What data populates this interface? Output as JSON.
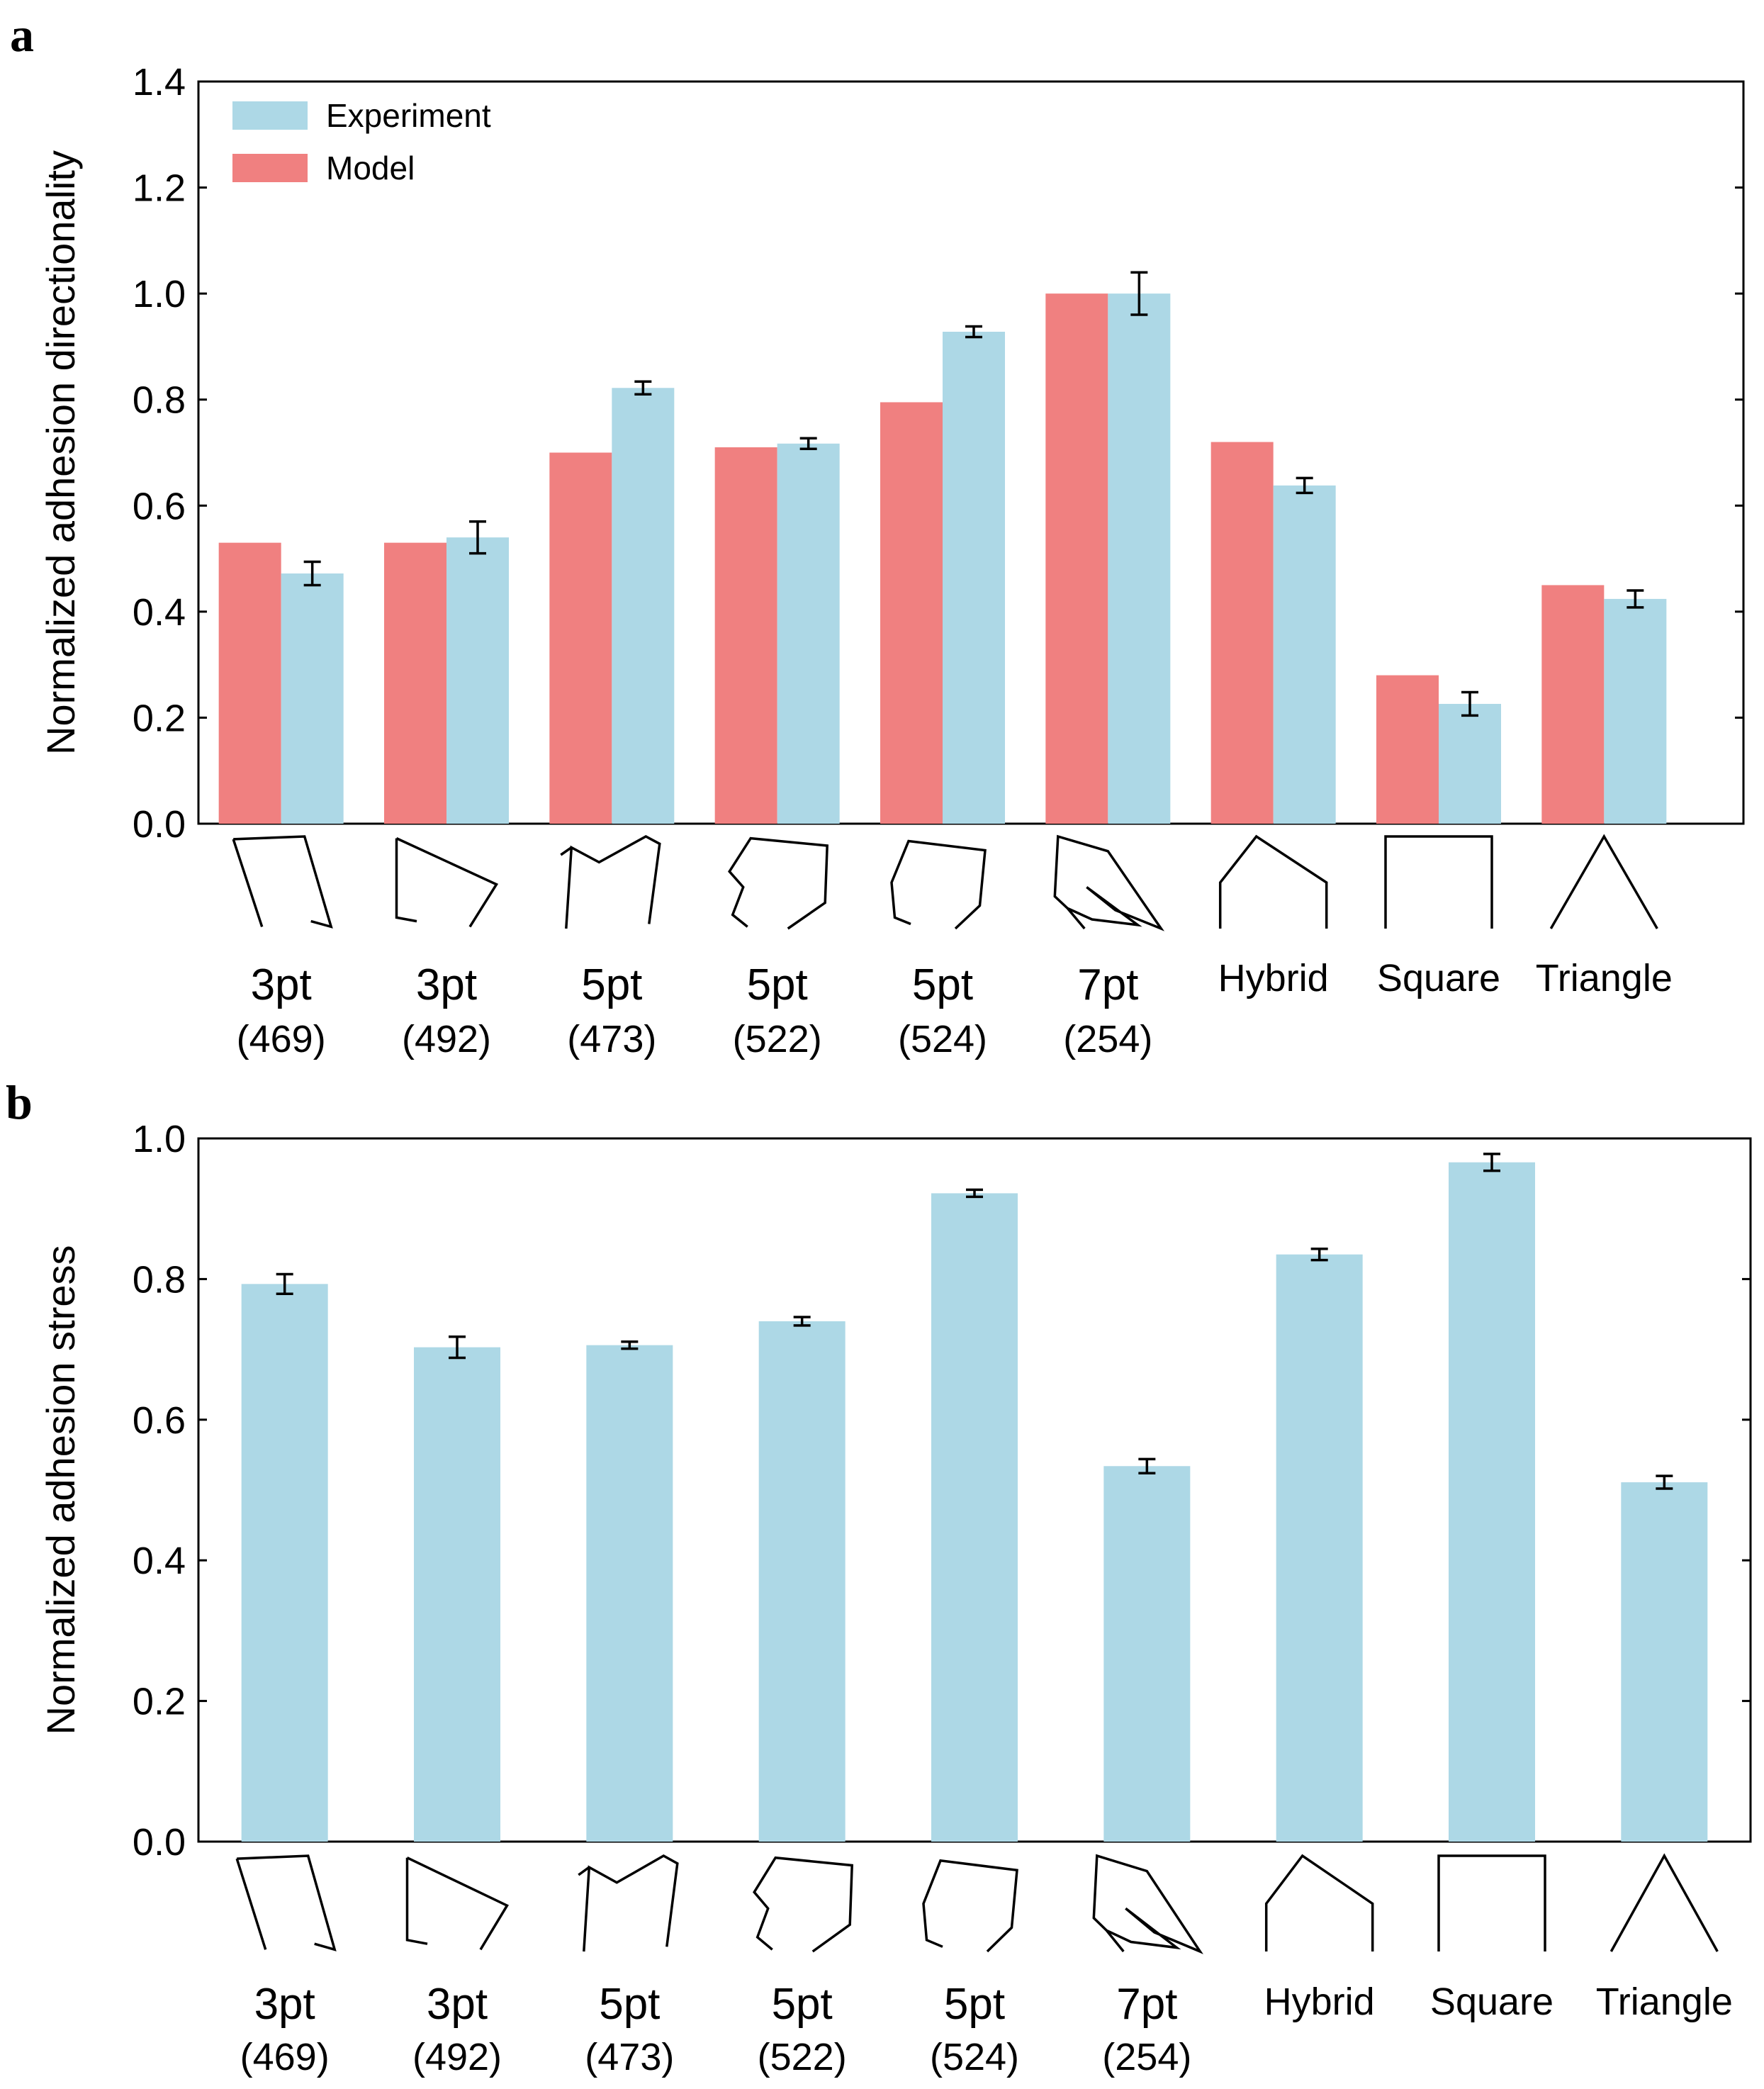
{
  "panels": {
    "a": {
      "letter": "a"
    },
    "b": {
      "letter": "b"
    }
  },
  "colors": {
    "experiment": "#add8e6",
    "model": "#f08080",
    "axis": "#000000"
  },
  "chart_data": [
    {
      "type": "bar",
      "panel": "a",
      "ylabel": "Normalized adhesion directionality",
      "xlabel": "",
      "ylim": [
        0,
        1.4
      ],
      "yticks": [
        "0.0",
        "0.2",
        "0.4",
        "0.6",
        "0.8",
        "1.0",
        "1.2",
        "1.4"
      ],
      "legend": {
        "position": "top-left",
        "entries": [
          "Experiment",
          "Model"
        ]
      },
      "categories": [
        {
          "label": "3pt",
          "sub": "(469)",
          "shape": "3pt-469"
        },
        {
          "label": "3pt",
          "sub": "(492)",
          "shape": "3pt-492"
        },
        {
          "label": "5pt",
          "sub": "(473)",
          "shape": "5pt-473"
        },
        {
          "label": "5pt",
          "sub": "(522)",
          "shape": "5pt-522"
        },
        {
          "label": "5pt",
          "sub": "(524)",
          "shape": "5pt-524"
        },
        {
          "label": "7pt",
          "sub": "(254)",
          "shape": "7pt-254"
        },
        {
          "label": "Hybrid",
          "sub": "",
          "shape": "hybrid"
        },
        {
          "label": "Square",
          "sub": "",
          "shape": "square"
        },
        {
          "label": "Triangle",
          "sub": "",
          "shape": "triangle"
        }
      ],
      "series": [
        {
          "name": "Model",
          "color": "#f08080",
          "values": [
            0.53,
            0.53,
            0.7,
            0.71,
            0.795,
            1.0,
            0.72,
            0.28,
            0.45
          ]
        },
        {
          "name": "Experiment",
          "color": "#add8e6",
          "values": [
            0.472,
            0.54,
            0.822,
            0.717,
            0.928,
            1.0,
            0.638,
            0.226,
            0.424
          ],
          "errors": [
            0.022,
            0.03,
            0.012,
            0.01,
            0.01,
            0.04,
            0.014,
            0.022,
            0.016
          ]
        }
      ]
    },
    {
      "type": "bar",
      "panel": "b",
      "ylabel": "Normalized adhesion stress",
      "xlabel": "",
      "ylim": [
        0,
        1.0
      ],
      "yticks": [
        "0.0",
        "0.2",
        "0.4",
        "0.6",
        "0.8",
        "1.0"
      ],
      "categories": [
        {
          "label": "3pt",
          "sub": "(469)",
          "shape": "3pt-469"
        },
        {
          "label": "3pt",
          "sub": "(492)",
          "shape": "3pt-492"
        },
        {
          "label": "5pt",
          "sub": "(473)",
          "shape": "5pt-473"
        },
        {
          "label": "5pt",
          "sub": "(522)",
          "shape": "5pt-522"
        },
        {
          "label": "5pt",
          "sub": "(524)",
          "shape": "5pt-524"
        },
        {
          "label": "7pt",
          "sub": "(254)",
          "shape": "7pt-254"
        },
        {
          "label": "Hybrid",
          "sub": "",
          "shape": "hybrid"
        },
        {
          "label": "Square",
          "sub": "",
          "shape": "square"
        },
        {
          "label": "Triangle",
          "sub": "",
          "shape": "triangle"
        }
      ],
      "series": [
        {
          "name": "Experiment",
          "color": "#add8e6",
          "values": [
            0.793,
            0.703,
            0.706,
            0.74,
            0.922,
            0.534,
            0.835,
            0.966,
            0.511
          ],
          "errors": [
            0.014,
            0.015,
            0.005,
            0.006,
            0.005,
            0.01,
            0.008,
            0.012,
            0.009
          ]
        }
      ]
    }
  ]
}
